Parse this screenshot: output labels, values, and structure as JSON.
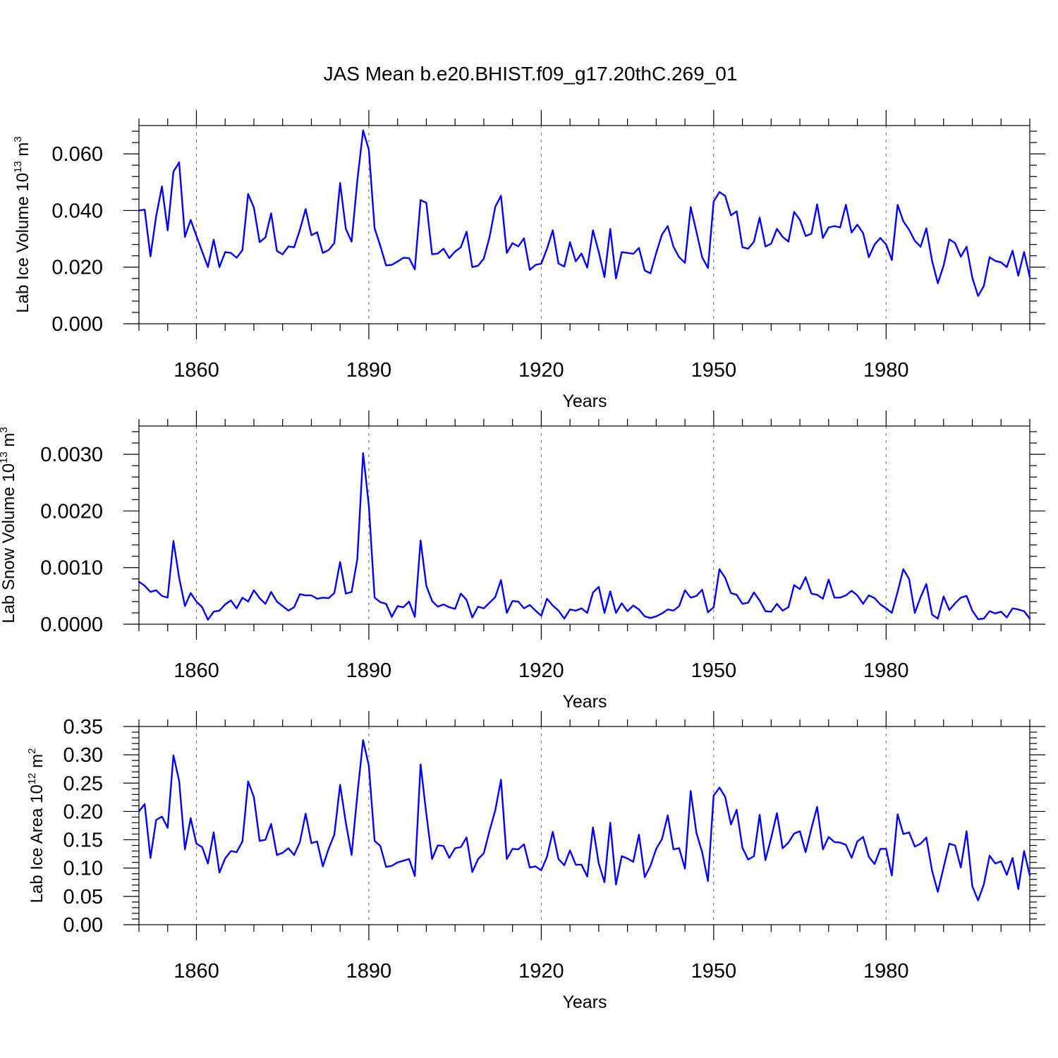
{
  "title": "JAS Mean b.e20.BHIST.f09_g17.20thC.269_01",
  "colors": {
    "line": "#0000ff",
    "axis": "#000000",
    "grid": "#6b6b6b",
    "background": "#ffffff"
  },
  "chart_data": [
    {
      "type": "line",
      "title": "JAS Mean b.e20.BHIST.f09_g17.20thC.269_01",
      "xlabel": "Years",
      "ylabel": {
        "main": "Lab Ice Volume 10",
        "sup": "13",
        "unit": " m",
        "unit_sup": "3"
      },
      "xlim": [
        1850,
        2005
      ],
      "ylim": [
        0,
        0.07
      ],
      "xticks": [
        "1860",
        "1890",
        "1920",
        "1950",
        "1980"
      ],
      "yticks": [
        "0.000",
        "0.020",
        "0.040",
        "0.060"
      ],
      "x_start": 1850,
      "series": [
        {
          "name": "Lab Ice Volume",
          "values": [
            0.04,
            0.0403,
            0.0238,
            0.038,
            0.0485,
            0.033,
            0.0537,
            0.057,
            0.0307,
            0.0367,
            0.031,
            0.0255,
            0.02,
            0.0297,
            0.02,
            0.0253,
            0.025,
            0.0233,
            0.026,
            0.0458,
            0.041,
            0.0288,
            0.0305,
            0.039,
            0.0257,
            0.0245,
            0.0273,
            0.027,
            0.0332,
            0.0405,
            0.0313,
            0.0323,
            0.025,
            0.026,
            0.0285,
            0.0497,
            0.0335,
            0.029,
            0.0505,
            0.0683,
            0.0615,
            0.0337,
            0.0275,
            0.0206,
            0.0208,
            0.022,
            0.0233,
            0.0232,
            0.0192,
            0.0437,
            0.0427,
            0.0245,
            0.0248,
            0.0265,
            0.0232,
            0.0255,
            0.027,
            0.0325,
            0.02,
            0.0205,
            0.023,
            0.0307,
            0.0413,
            0.0452,
            0.025,
            0.0285,
            0.0273,
            0.0302,
            0.019,
            0.0208,
            0.0212,
            0.0265,
            0.033,
            0.0213,
            0.0202,
            0.0288,
            0.022,
            0.0248,
            0.0198,
            0.033,
            0.0253,
            0.0165,
            0.0335,
            0.016,
            0.0253,
            0.025,
            0.0247,
            0.0268,
            0.0188,
            0.0178,
            0.025,
            0.0315,
            0.0345,
            0.0272,
            0.0235,
            0.0215,
            0.0412,
            0.0325,
            0.0235,
            0.0197,
            0.0432,
            0.0465,
            0.0452,
            0.0383,
            0.0397,
            0.027,
            0.0265,
            0.029,
            0.0375,
            0.0273,
            0.0283,
            0.0335,
            0.0307,
            0.029,
            0.0395,
            0.0367,
            0.031,
            0.0318,
            0.0422,
            0.0303,
            0.034,
            0.0345,
            0.034,
            0.042,
            0.0322,
            0.035,
            0.032,
            0.0235,
            0.028,
            0.0303,
            0.028,
            0.0225,
            0.042,
            0.0362,
            0.0332,
            0.0293,
            0.0272,
            0.0337,
            0.0222,
            0.0143,
            0.0205,
            0.0298,
            0.0285,
            0.0237,
            0.0272,
            0.0163,
            0.0098,
            0.0133,
            0.0235,
            0.0222,
            0.0217,
            0.02,
            0.0258,
            0.017,
            0.0253,
            0.0165
          ]
        }
      ]
    },
    {
      "type": "line",
      "xlabel": "Years",
      "ylabel": {
        "main": "Lab Snow Volume 10",
        "sup": "13",
        "unit": " m",
        "unit_sup": "3"
      },
      "xlim": [
        1850,
        2005
      ],
      "ylim": [
        0,
        0.0035
      ],
      "xticks": [
        "1860",
        "1890",
        "1920",
        "1950",
        "1980"
      ],
      "yticks": [
        "0.0000",
        "0.0010",
        "0.0020",
        "0.0030"
      ],
      "x_start": 1850,
      "series": [
        {
          "name": "Lab Snow Volume",
          "values": [
            0.00075,
            0.00068,
            0.00057,
            0.0006,
            0.0005,
            0.00047,
            0.00147,
            0.00082,
            0.00032,
            0.00055,
            0.0004,
            0.0003,
            8e-05,
            0.00022,
            0.00024,
            0.00035,
            0.00042,
            0.00028,
            0.00047,
            0.0004,
            0.0006,
            0.00046,
            0.00036,
            0.00057,
            0.0004,
            0.00032,
            0.00024,
            0.0003,
            0.00053,
            0.00051,
            0.00051,
            0.00045,
            0.00047,
            0.00046,
            0.00055,
            0.0011,
            0.00054,
            0.00057,
            0.00115,
            0.00302,
            0.0021,
            0.00047,
            0.00039,
            0.00036,
            0.00013,
            0.00032,
            0.0003,
            0.0004,
            0.00013,
            0.00148,
            0.00068,
            0.00041,
            0.00031,
            0.00035,
            0.0003,
            0.00027,
            0.00054,
            0.00043,
            0.00012,
            0.00031,
            0.00028,
            0.00038,
            0.00048,
            0.00078,
            0.0002,
            0.00041,
            0.0004,
            0.00028,
            0.00034,
            0.00024,
            0.00015,
            0.00045,
            0.00033,
            0.00024,
            0.0001,
            0.00026,
            0.00024,
            0.00028,
            0.0002,
            0.00056,
            0.00066,
            0.0002,
            0.00058,
            0.0002,
            0.00037,
            0.00023,
            0.00033,
            0.00026,
            0.00014,
            0.00011,
            0.00014,
            0.00019,
            0.00026,
            0.00024,
            0.00032,
            0.0006,
            0.00047,
            0.0005,
            0.00061,
            0.00021,
            0.0003,
            0.00097,
            0.00082,
            0.00055,
            0.00052,
            0.00036,
            0.00038,
            0.00056,
            0.00042,
            0.00023,
            0.00022,
            0.00036,
            0.00024,
            0.0003,
            0.00069,
            0.00062,
            0.00083,
            0.00054,
            0.00052,
            0.00045,
            0.00079,
            0.00047,
            0.00047,
            0.00051,
            0.00059,
            0.00051,
            0.00036,
            0.00051,
            0.00046,
            0.00035,
            0.00028,
            0.0002,
            0.00057,
            0.00097,
            0.0008,
            0.0002,
            0.00048,
            0.00071,
            0.00017,
            0.0001,
            0.00049,
            0.00025,
            0.00037,
            0.00047,
            0.0005,
            0.00024,
            9e-05,
            0.0001,
            0.00023,
            0.00019,
            0.00022,
            0.00012,
            0.00028,
            0.00026,
            0.00023,
            0.0001
          ]
        }
      ]
    },
    {
      "type": "line",
      "xlabel": "Years",
      "ylabel": {
        "main": "Lab Ice Area 10",
        "sup": "12",
        "unit": " m",
        "unit_sup": "2"
      },
      "xlim": [
        1850,
        2005
      ],
      "ylim": [
        0,
        0.35
      ],
      "xticks": [
        "1860",
        "1890",
        "1920",
        "1950",
        "1980"
      ],
      "yticks": [
        "0.00",
        "0.05",
        "0.10",
        "0.15",
        "0.20",
        "0.25",
        "0.30",
        "0.35"
      ],
      "x_start": 1850,
      "series": [
        {
          "name": "Lab Ice Area",
          "values": [
            0.2,
            0.213,
            0.118,
            0.185,
            0.191,
            0.171,
            0.299,
            0.254,
            0.133,
            0.188,
            0.143,
            0.137,
            0.108,
            0.163,
            0.092,
            0.117,
            0.13,
            0.128,
            0.147,
            0.253,
            0.225,
            0.148,
            0.15,
            0.178,
            0.123,
            0.127,
            0.135,
            0.123,
            0.146,
            0.196,
            0.144,
            0.147,
            0.103,
            0.134,
            0.159,
            0.247,
            0.18,
            0.123,
            0.229,
            0.326,
            0.281,
            0.148,
            0.139,
            0.102,
            0.104,
            0.11,
            0.113,
            0.116,
            0.086,
            0.283,
            0.196,
            0.116,
            0.14,
            0.139,
            0.118,
            0.135,
            0.137,
            0.154,
            0.093,
            0.116,
            0.126,
            0.166,
            0.202,
            0.256,
            0.116,
            0.134,
            0.133,
            0.142,
            0.101,
            0.103,
            0.096,
            0.12,
            0.164,
            0.116,
            0.105,
            0.131,
            0.106,
            0.106,
            0.085,
            0.172,
            0.108,
            0.075,
            0.18,
            0.071,
            0.121,
            0.117,
            0.111,
            0.159,
            0.084,
            0.104,
            0.134,
            0.151,
            0.193,
            0.133,
            0.135,
            0.099,
            0.236,
            0.162,
            0.128,
            0.077,
            0.228,
            0.242,
            0.226,
            0.177,
            0.203,
            0.136,
            0.115,
            0.121,
            0.194,
            0.114,
            0.153,
            0.197,
            0.135,
            0.145,
            0.161,
            0.165,
            0.128,
            0.17,
            0.208,
            0.133,
            0.155,
            0.146,
            0.145,
            0.141,
            0.118,
            0.147,
            0.155,
            0.12,
            0.107,
            0.134,
            0.134,
            0.087,
            0.195,
            0.16,
            0.163,
            0.138,
            0.143,
            0.154,
            0.095,
            0.058,
            0.101,
            0.143,
            0.14,
            0.101,
            0.165,
            0.068,
            0.043,
            0.071,
            0.122,
            0.108,
            0.112,
            0.088,
            0.118,
            0.063,
            0.13,
            0.087
          ]
        }
      ]
    }
  ]
}
